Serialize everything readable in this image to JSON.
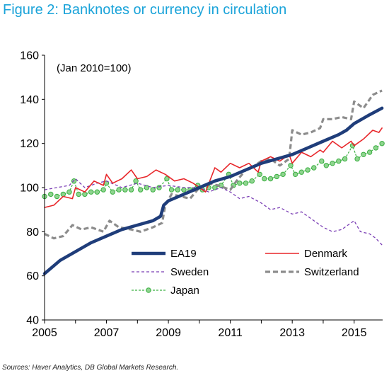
{
  "title": "Figure 2:  Banknotes or currency in circulation",
  "source": "Sources: Haver Analytics, DB Global Markets Research.",
  "chart_data": {
    "type": "line",
    "annotation": "(Jan 2010=100)",
    "xlim": [
      2005,
      2015.92
    ],
    "ylim": [
      40,
      160
    ],
    "x_ticks": [
      "2005",
      "2007",
      "2009",
      "2011",
      "2013",
      "2015"
    ],
    "y_ticks": [
      "40",
      "60",
      "80",
      "100",
      "120",
      "140",
      "160"
    ],
    "grid": false,
    "legend": "inside-bottom-right",
    "series": [
      {
        "name": "EA19",
        "color": "#1f3d7a",
        "style": "solid-thick",
        "points": [
          [
            2005.0,
            61
          ],
          [
            2005.5,
            67
          ],
          [
            2006.0,
            71
          ],
          [
            2006.5,
            75
          ],
          [
            2007.0,
            78
          ],
          [
            2007.5,
            81
          ],
          [
            2008.0,
            83
          ],
          [
            2008.5,
            85
          ],
          [
            2008.75,
            87
          ],
          [
            2008.85,
            92
          ],
          [
            2009.0,
            94
          ],
          [
            2009.5,
            97
          ],
          [
            2010.0,
            100
          ],
          [
            2010.5,
            103
          ],
          [
            2011.0,
            105
          ],
          [
            2011.5,
            108
          ],
          [
            2012.0,
            111
          ],
          [
            2012.5,
            113
          ],
          [
            2013.0,
            115
          ],
          [
            2013.5,
            118
          ],
          [
            2014.0,
            121
          ],
          [
            2014.5,
            124
          ],
          [
            2014.75,
            126
          ],
          [
            2015.0,
            129
          ],
          [
            2015.5,
            133
          ],
          [
            2015.9,
            136
          ]
        ]
      },
      {
        "name": "Denmark",
        "color": "#e8262a",
        "style": "solid",
        "points": [
          [
            2005.0,
            91
          ],
          [
            2005.3,
            92
          ],
          [
            2005.6,
            96
          ],
          [
            2005.9,
            95
          ],
          [
            2006.0,
            100
          ],
          [
            2006.3,
            98
          ],
          [
            2006.6,
            103
          ],
          [
            2006.9,
            101
          ],
          [
            2007.0,
            106
          ],
          [
            2007.2,
            102
          ],
          [
            2007.5,
            104
          ],
          [
            2007.8,
            108
          ],
          [
            2008.0,
            104
          ],
          [
            2008.3,
            105
          ],
          [
            2008.6,
            108
          ],
          [
            2008.9,
            106
          ],
          [
            2009.2,
            103
          ],
          [
            2009.5,
            104
          ],
          [
            2009.8,
            102
          ],
          [
            2010.0,
            100
          ],
          [
            2010.2,
            98
          ],
          [
            2010.5,
            109
          ],
          [
            2010.7,
            107
          ],
          [
            2011.0,
            111
          ],
          [
            2011.3,
            109
          ],
          [
            2011.6,
            111
          ],
          [
            2011.9,
            107
          ],
          [
            2012.0,
            112
          ],
          [
            2012.3,
            114
          ],
          [
            2012.6,
            112
          ],
          [
            2012.9,
            115
          ],
          [
            2013.0,
            111
          ],
          [
            2013.3,
            116
          ],
          [
            2013.6,
            114
          ],
          [
            2013.9,
            117
          ],
          [
            2014.0,
            116
          ],
          [
            2014.3,
            121
          ],
          [
            2014.6,
            118
          ],
          [
            2014.9,
            121
          ],
          [
            2015.0,
            119
          ],
          [
            2015.3,
            122
          ],
          [
            2015.6,
            126
          ],
          [
            2015.8,
            125
          ],
          [
            2015.9,
            127
          ]
        ]
      },
      {
        "name": "Sweden",
        "color": "#7b3fb5",
        "style": "dashed",
        "points": [
          [
            2005.0,
            99
          ],
          [
            2005.4,
            100
          ],
          [
            2005.8,
            101
          ],
          [
            2006.0,
            104
          ],
          [
            2006.3,
            100
          ],
          [
            2006.7,
            102
          ],
          [
            2007.0,
            103
          ],
          [
            2007.5,
            100
          ],
          [
            2008.0,
            102
          ],
          [
            2008.5,
            100
          ],
          [
            2009.0,
            101
          ],
          [
            2009.5,
            100
          ],
          [
            2010.0,
            100
          ],
          [
            2010.3,
            98
          ],
          [
            2010.7,
            100
          ],
          [
            2011.0,
            98
          ],
          [
            2011.3,
            95
          ],
          [
            2011.6,
            96
          ],
          [
            2012.0,
            93
          ],
          [
            2012.3,
            90
          ],
          [
            2012.6,
            91
          ],
          [
            2013.0,
            88
          ],
          [
            2013.3,
            89
          ],
          [
            2013.6,
            86
          ],
          [
            2014.0,
            82
          ],
          [
            2014.3,
            80
          ],
          [
            2014.6,
            81
          ],
          [
            2015.0,
            85
          ],
          [
            2015.2,
            80
          ],
          [
            2015.5,
            79
          ],
          [
            2015.7,
            77
          ],
          [
            2015.9,
            74
          ]
        ]
      },
      {
        "name": "Switzerland",
        "color": "#8c8c8c",
        "style": "dashed-thick",
        "points": [
          [
            2005.0,
            79
          ],
          [
            2005.3,
            77
          ],
          [
            2005.6,
            78
          ],
          [
            2005.9,
            83
          ],
          [
            2006.2,
            81
          ],
          [
            2006.5,
            82
          ],
          [
            2006.9,
            80
          ],
          [
            2007.1,
            85
          ],
          [
            2007.4,
            82
          ],
          [
            2007.8,
            81
          ],
          [
            2008.1,
            80
          ],
          [
            2008.5,
            82
          ],
          [
            2008.8,
            84
          ],
          [
            2008.9,
            92
          ],
          [
            2009.1,
            97
          ],
          [
            2009.4,
            96
          ],
          [
            2009.7,
            95
          ],
          [
            2010.0,
            100
          ],
          [
            2010.3,
            102
          ],
          [
            2010.6,
            101
          ],
          [
            2011.0,
            99
          ],
          [
            2011.2,
            103
          ],
          [
            2011.5,
            108
          ],
          [
            2011.8,
            110
          ],
          [
            2012.0,
            112
          ],
          [
            2012.3,
            113
          ],
          [
            2012.6,
            110
          ],
          [
            2012.9,
            113
          ],
          [
            2013.0,
            126
          ],
          [
            2013.3,
            124
          ],
          [
            2013.6,
            125
          ],
          [
            2013.9,
            127
          ],
          [
            2014.0,
            131
          ],
          [
            2014.3,
            131
          ],
          [
            2014.6,
            132
          ],
          [
            2014.9,
            131
          ],
          [
            2015.0,
            139
          ],
          [
            2015.3,
            136
          ],
          [
            2015.6,
            142
          ],
          [
            2015.9,
            144
          ]
        ]
      },
      {
        "name": "Japan",
        "color": "#3cb043",
        "style": "dashed-markers",
        "points": [
          [
            2005.0,
            96
          ],
          [
            2005.2,
            97
          ],
          [
            2005.4,
            96
          ],
          [
            2005.6,
            97
          ],
          [
            2005.8,
            98
          ],
          [
            2005.95,
            103
          ],
          [
            2006.1,
            97
          ],
          [
            2006.3,
            97
          ],
          [
            2006.5,
            98
          ],
          [
            2006.7,
            98
          ],
          [
            2006.9,
            99
          ],
          [
            2007.0,
            102
          ],
          [
            2007.2,
            98
          ],
          [
            2007.4,
            99
          ],
          [
            2007.6,
            99
          ],
          [
            2007.8,
            99
          ],
          [
            2007.95,
            103
          ],
          [
            2008.1,
            99
          ],
          [
            2008.3,
            100
          ],
          [
            2008.5,
            99
          ],
          [
            2008.7,
            100
          ],
          [
            2008.95,
            104
          ],
          [
            2009.1,
            99
          ],
          [
            2009.3,
            99
          ],
          [
            2009.5,
            99
          ],
          [
            2009.7,
            99
          ],
          [
            2009.95,
            101
          ],
          [
            2010.1,
            99
          ],
          [
            2010.3,
            100
          ],
          [
            2010.5,
            100
          ],
          [
            2010.7,
            101
          ],
          [
            2010.95,
            106
          ],
          [
            2011.1,
            101
          ],
          [
            2011.3,
            102
          ],
          [
            2011.5,
            102
          ],
          [
            2011.7,
            103
          ],
          [
            2011.95,
            106
          ],
          [
            2012.1,
            104
          ],
          [
            2012.3,
            104
          ],
          [
            2012.5,
            105
          ],
          [
            2012.7,
            106
          ],
          [
            2012.95,
            110
          ],
          [
            2013.1,
            106
          ],
          [
            2013.3,
            107
          ],
          [
            2013.5,
            108
          ],
          [
            2013.7,
            109
          ],
          [
            2013.95,
            112
          ],
          [
            2014.1,
            110
          ],
          [
            2014.3,
            111
          ],
          [
            2014.5,
            112
          ],
          [
            2014.7,
            113
          ],
          [
            2014.95,
            119
          ],
          [
            2015.1,
            113
          ],
          [
            2015.3,
            115
          ],
          [
            2015.5,
            116
          ],
          [
            2015.7,
            118
          ],
          [
            2015.9,
            120
          ]
        ]
      }
    ]
  }
}
